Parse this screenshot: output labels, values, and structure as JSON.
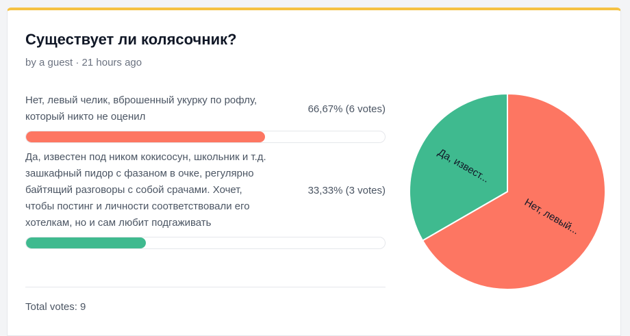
{
  "poll": {
    "title": "Существует ли колясочник?",
    "meta": "by a guest · 21 hours ago",
    "total": "Total votes: 9"
  },
  "options": [
    {
      "label": "Нет, левый челик, вброшенный укурку по рофлу, который никто не оценил",
      "stat": "66,67% (6 votes)",
      "share": 0.6667,
      "color": "#fd7662",
      "pie_label": "Нет, левый..."
    },
    {
      "label": "Да, известен под ником кокисосун, школьник и т.д. зашкафный пидор с фазаном в очке, регулярно байтящий разговоры с собой срачами. Хочет, чтобы постинг и личности соответствовали его хотелкам, но и сам любит подгаживать",
      "stat": "33,33% (3 votes)",
      "share": 0.3333,
      "color": "#3fba8f",
      "pie_label": "Да, извест..."
    }
  ],
  "chart_data": {
    "type": "pie",
    "categories": [
      "Нет, левый...",
      "Да, извест..."
    ],
    "values": [
      6,
      3
    ],
    "colors": [
      "#fd7662",
      "#3fba8f"
    ],
    "start": "12 o'clock, clockwise"
  },
  "theme": {
    "accent_top": "#f5c242"
  }
}
